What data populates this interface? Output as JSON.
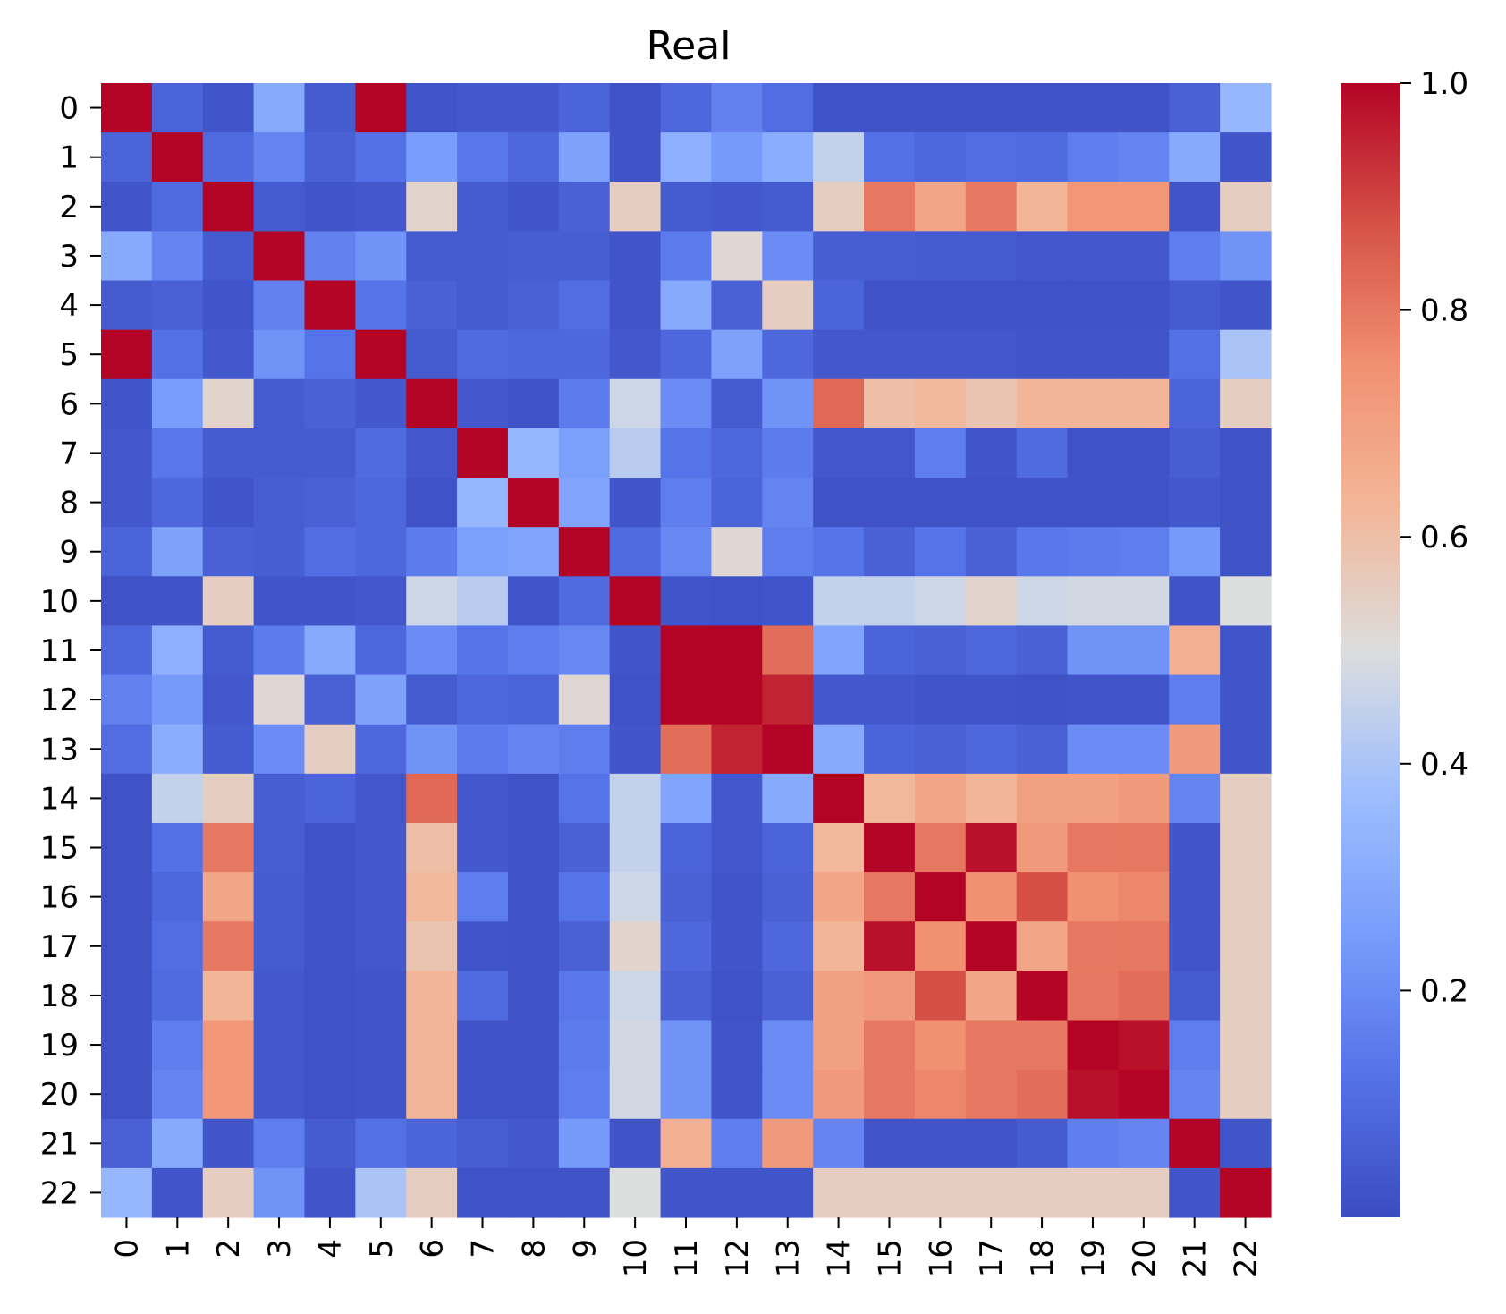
{
  "chart_data": {
    "type": "heatmap",
    "title": "Real",
    "xlabel": "",
    "ylabel": "",
    "row_labels": [
      "0",
      "1",
      "2",
      "3",
      "4",
      "5",
      "6",
      "7",
      "8",
      "9",
      "10",
      "11",
      "12",
      "13",
      "14",
      "15",
      "16",
      "17",
      "18",
      "19",
      "20",
      "21",
      "22"
    ],
    "col_labels": [
      "0",
      "1",
      "2",
      "3",
      "4",
      "5",
      "6",
      "7",
      "8",
      "9",
      "10",
      "11",
      "12",
      "13",
      "14",
      "15",
      "16",
      "17",
      "18",
      "19",
      "20",
      "21",
      "22"
    ],
    "colormap": "coolwarm",
    "color_range": [
      0.0,
      1.0
    ],
    "colorbar_ticks": [
      "0.2",
      "0.4",
      "0.6",
      "0.8",
      "1.0"
    ],
    "colorbar_tick_values": [
      0.2,
      0.4,
      0.6,
      0.8,
      1.0
    ],
    "values": [
      [
        1.0,
        0.08,
        0.03,
        0.3,
        0.05,
        1.0,
        0.03,
        0.04,
        0.04,
        0.08,
        0.02,
        0.09,
        0.17,
        0.11,
        0.02,
        0.02,
        0.02,
        0.02,
        0.02,
        0.02,
        0.02,
        0.07,
        0.35
      ],
      [
        0.08,
        1.0,
        0.1,
        0.18,
        0.07,
        0.12,
        0.25,
        0.14,
        0.09,
        0.27,
        0.02,
        0.32,
        0.24,
        0.31,
        0.45,
        0.12,
        0.09,
        0.11,
        0.1,
        0.16,
        0.18,
        0.3,
        0.03
      ],
      [
        0.03,
        0.1,
        1.0,
        0.05,
        0.03,
        0.04,
        0.53,
        0.05,
        0.03,
        0.07,
        0.55,
        0.05,
        0.04,
        0.05,
        0.55,
        0.8,
        0.68,
        0.8,
        0.63,
        0.73,
        0.73,
        0.03,
        0.55
      ],
      [
        0.3,
        0.18,
        0.05,
        1.0,
        0.17,
        0.22,
        0.05,
        0.05,
        0.06,
        0.06,
        0.03,
        0.15,
        0.52,
        0.2,
        0.06,
        0.06,
        0.05,
        0.05,
        0.04,
        0.04,
        0.04,
        0.16,
        0.22
      ],
      [
        0.05,
        0.07,
        0.03,
        0.17,
        1.0,
        0.13,
        0.07,
        0.05,
        0.07,
        0.11,
        0.03,
        0.3,
        0.07,
        0.55,
        0.08,
        0.02,
        0.02,
        0.02,
        0.02,
        0.02,
        0.02,
        0.05,
        0.03
      ],
      [
        1.0,
        0.12,
        0.04,
        0.22,
        0.13,
        1.0,
        0.05,
        0.1,
        0.09,
        0.09,
        0.04,
        0.09,
        0.27,
        0.09,
        0.04,
        0.04,
        0.04,
        0.04,
        0.03,
        0.03,
        0.03,
        0.12,
        0.4
      ],
      [
        0.03,
        0.25,
        0.53,
        0.05,
        0.07,
        0.04,
        1.0,
        0.04,
        0.02,
        0.15,
        0.47,
        0.2,
        0.05,
        0.22,
        0.83,
        0.6,
        0.62,
        0.58,
        0.63,
        0.63,
        0.63,
        0.08,
        0.55
      ],
      [
        0.04,
        0.14,
        0.05,
        0.05,
        0.05,
        0.1,
        0.04,
        1.0,
        0.35,
        0.26,
        0.43,
        0.13,
        0.09,
        0.15,
        0.04,
        0.04,
        0.16,
        0.03,
        0.1,
        0.02,
        0.02,
        0.06,
        0.02
      ],
      [
        0.04,
        0.09,
        0.03,
        0.06,
        0.07,
        0.09,
        0.02,
        0.35,
        1.0,
        0.28,
        0.03,
        0.16,
        0.08,
        0.18,
        0.02,
        0.02,
        0.02,
        0.02,
        0.02,
        0.02,
        0.02,
        0.04,
        0.02
      ],
      [
        0.08,
        0.27,
        0.07,
        0.06,
        0.11,
        0.09,
        0.15,
        0.26,
        0.28,
        1.0,
        0.1,
        0.19,
        0.52,
        0.16,
        0.13,
        0.07,
        0.13,
        0.07,
        0.14,
        0.15,
        0.16,
        0.24,
        0.02
      ],
      [
        0.02,
        0.02,
        0.55,
        0.03,
        0.03,
        0.04,
        0.47,
        0.43,
        0.03,
        0.1,
        1.0,
        0.03,
        0.02,
        0.03,
        0.45,
        0.45,
        0.47,
        0.53,
        0.47,
        0.48,
        0.48,
        0.02,
        0.5
      ],
      [
        0.09,
        0.32,
        0.05,
        0.15,
        0.3,
        0.09,
        0.2,
        0.13,
        0.16,
        0.19,
        0.03,
        1.0,
        1.0,
        0.82,
        0.28,
        0.08,
        0.07,
        0.09,
        0.07,
        0.22,
        0.22,
        0.65,
        0.03
      ],
      [
        0.17,
        0.24,
        0.04,
        0.52,
        0.07,
        0.27,
        0.05,
        0.09,
        0.08,
        0.52,
        0.02,
        1.0,
        1.0,
        0.95,
        0.04,
        0.04,
        0.03,
        0.03,
        0.02,
        0.03,
        0.03,
        0.16,
        0.03
      ],
      [
        0.11,
        0.31,
        0.05,
        0.2,
        0.55,
        0.09,
        0.22,
        0.15,
        0.18,
        0.16,
        0.03,
        0.82,
        0.95,
        1.0,
        0.3,
        0.08,
        0.07,
        0.09,
        0.07,
        0.2,
        0.2,
        0.72,
        0.03
      ],
      [
        0.02,
        0.45,
        0.55,
        0.06,
        0.08,
        0.04,
        0.83,
        0.04,
        0.02,
        0.13,
        0.45,
        0.28,
        0.04,
        0.3,
        1.0,
        0.62,
        0.68,
        0.63,
        0.7,
        0.7,
        0.72,
        0.18,
        0.55
      ],
      [
        0.02,
        0.12,
        0.8,
        0.06,
        0.02,
        0.04,
        0.6,
        0.04,
        0.02,
        0.07,
        0.45,
        0.08,
        0.04,
        0.08,
        0.62,
        1.0,
        0.8,
        0.98,
        0.72,
        0.8,
        0.8,
        0.03,
        0.55
      ],
      [
        0.02,
        0.09,
        0.68,
        0.05,
        0.02,
        0.04,
        0.62,
        0.16,
        0.02,
        0.13,
        0.47,
        0.07,
        0.03,
        0.07,
        0.68,
        0.8,
        1.0,
        0.75,
        0.88,
        0.75,
        0.77,
        0.03,
        0.55
      ],
      [
        0.02,
        0.11,
        0.8,
        0.05,
        0.02,
        0.04,
        0.58,
        0.03,
        0.02,
        0.07,
        0.53,
        0.09,
        0.03,
        0.09,
        0.63,
        0.98,
        0.75,
        1.0,
        0.68,
        0.8,
        0.8,
        0.03,
        0.55
      ],
      [
        0.02,
        0.1,
        0.63,
        0.04,
        0.02,
        0.03,
        0.63,
        0.1,
        0.02,
        0.14,
        0.47,
        0.07,
        0.02,
        0.07,
        0.7,
        0.72,
        0.88,
        0.68,
        1.0,
        0.8,
        0.82,
        0.05,
        0.55
      ],
      [
        0.02,
        0.16,
        0.73,
        0.04,
        0.02,
        0.03,
        0.63,
        0.02,
        0.02,
        0.15,
        0.48,
        0.22,
        0.03,
        0.2,
        0.7,
        0.8,
        0.75,
        0.8,
        0.8,
        1.0,
        0.98,
        0.16,
        0.55
      ],
      [
        0.02,
        0.18,
        0.73,
        0.04,
        0.02,
        0.03,
        0.63,
        0.02,
        0.02,
        0.16,
        0.48,
        0.22,
        0.03,
        0.2,
        0.72,
        0.8,
        0.77,
        0.8,
        0.82,
        0.98,
        1.0,
        0.18,
        0.55
      ],
      [
        0.07,
        0.3,
        0.03,
        0.16,
        0.05,
        0.12,
        0.08,
        0.06,
        0.04,
        0.24,
        0.02,
        0.65,
        0.16,
        0.72,
        0.18,
        0.03,
        0.03,
        0.03,
        0.05,
        0.16,
        0.18,
        1.0,
        0.03
      ],
      [
        0.35,
        0.03,
        0.55,
        0.22,
        0.03,
        0.4,
        0.55,
        0.02,
        0.02,
        0.02,
        0.5,
        0.03,
        0.03,
        0.03,
        0.55,
        0.55,
        0.55,
        0.55,
        0.55,
        0.55,
        0.55,
        0.03,
        1.0
      ]
    ]
  }
}
